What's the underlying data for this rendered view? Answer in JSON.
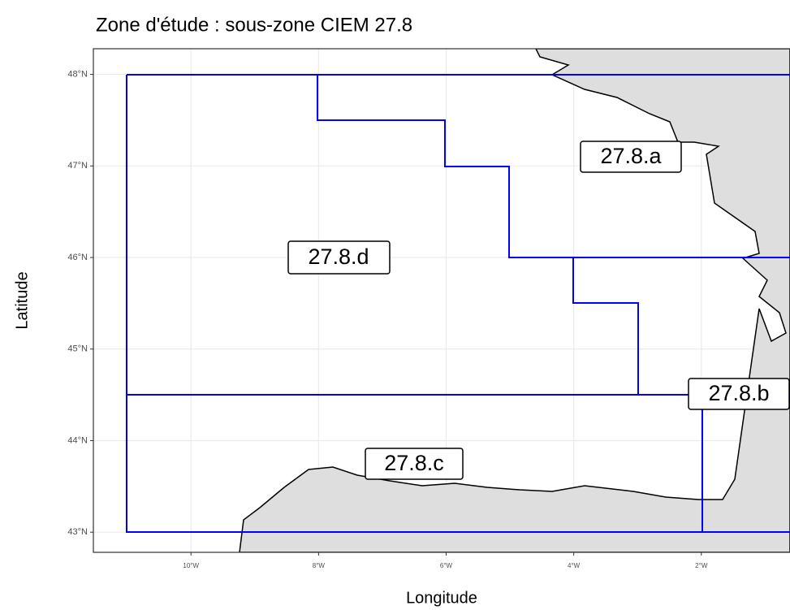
{
  "title": "Zone d'étude : sous-zone CIEM 27.8",
  "x_label": "Longitude",
  "y_label": "Latitude",
  "xlim": [
    -11.53,
    -0.61
  ],
  "ylim": [
    42.78,
    48.28
  ],
  "xticks": [
    {
      "value": -10,
      "label": "10°W"
    },
    {
      "value": -8,
      "label": "8°W"
    },
    {
      "value": -6,
      "label": "6°W"
    },
    {
      "value": -4,
      "label": "4°W"
    },
    {
      "value": -2,
      "label": "2°W"
    }
  ],
  "yticks": [
    {
      "value": 43,
      "label": "43°N"
    },
    {
      "value": 44,
      "label": "44°N"
    },
    {
      "value": 45,
      "label": "45°N"
    },
    {
      "value": 46,
      "label": "46°N"
    },
    {
      "value": 47,
      "label": "47°N"
    },
    {
      "value": 48,
      "label": "48°N"
    }
  ],
  "grid": true,
  "zones": [
    "27.8.a",
    "27.8.b",
    "27.8.c",
    "27.8.d"
  ]
}
